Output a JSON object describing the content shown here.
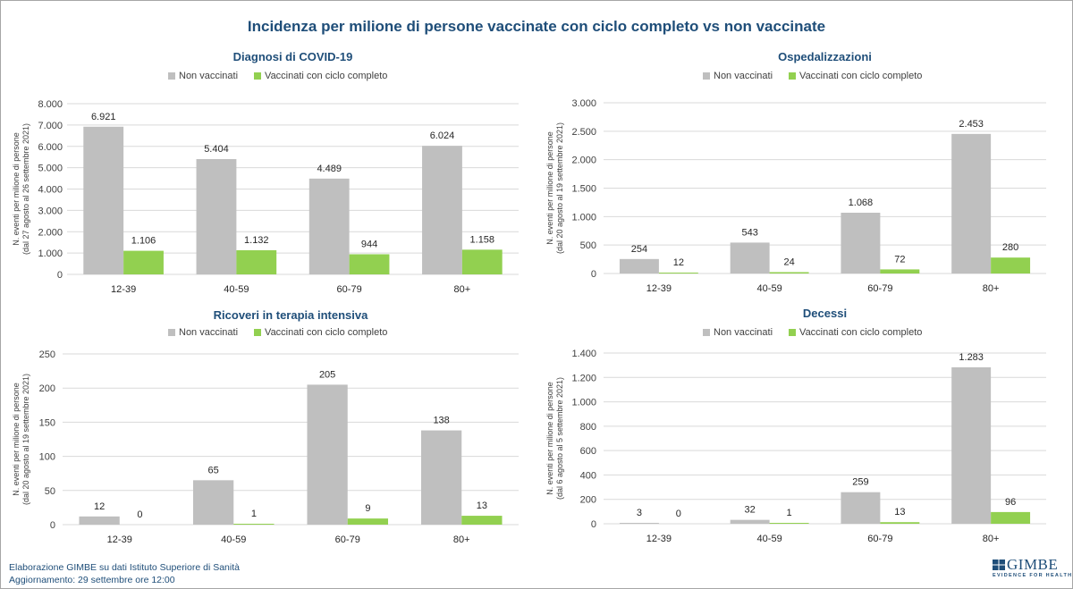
{
  "title": "Incidenza per milione di persone vaccinate con ciclo completo vs non vaccinate",
  "colors": {
    "non_vaccinati": "#bfbfbf",
    "vaccinati": "#92d050",
    "title": "#1f4e79",
    "grid": "#d9d9d9"
  },
  "legend": {
    "non_vaccinati": "Non vaccinati",
    "vaccinati": "Vaccinati con ciclo completo"
  },
  "chart_data": [
    {
      "type": "bar",
      "title": "Diagnosi di COVID-19",
      "ylabel_line1": "N. eventi per milione di persone",
      "ylabel_line2": "(dal 27  agosto al 26  settembre 2021)",
      "categories": [
        "12-39",
        "40-59",
        "60-79",
        "80+"
      ],
      "ylim": [
        0,
        8000
      ],
      "yticks": [
        0,
        1000,
        2000,
        3000,
        4000,
        5000,
        6000,
        7000,
        8000
      ],
      "ytick_labels": [
        "0",
        "1.000",
        "2.000",
        "3.000",
        "4.000",
        "5.000",
        "6.000",
        "7.000",
        "8.000"
      ],
      "series": [
        {
          "name": "Non vaccinati",
          "values": [
            6921,
            5404,
            4489,
            6024
          ],
          "labels": [
            "6.921",
            "5.404",
            "4.489",
            "6.024"
          ]
        },
        {
          "name": "Vaccinati con ciclo completo",
          "values": [
            1106,
            1132,
            944,
            1158
          ],
          "labels": [
            "1.106",
            "1.132",
            "944",
            "1.158"
          ]
        }
      ],
      "grid": true,
      "legend_position": "top"
    },
    {
      "type": "bar",
      "title": "Ospedalizzazioni",
      "ylabel_line1": "N. eventi per milione di persone",
      "ylabel_line2": "(dal 20  agosto al 19  settembre 2021)",
      "categories": [
        "12-39",
        "40-59",
        "60-79",
        "80+"
      ],
      "ylim": [
        0,
        3000
      ],
      "yticks": [
        0,
        500,
        1000,
        1500,
        2000,
        2500,
        3000
      ],
      "ytick_labels": [
        "0",
        "500",
        "1.000",
        "1.500",
        "2.000",
        "2.500",
        "3.000"
      ],
      "series": [
        {
          "name": "Non vaccinati",
          "values": [
            254,
            543,
            1068,
            2453
          ],
          "labels": [
            "254",
            "543",
            "1.068",
            "2.453"
          ]
        },
        {
          "name": "Vaccinati con ciclo completo",
          "values": [
            12,
            24,
            72,
            280
          ],
          "labels": [
            "12",
            "24",
            "72",
            "280"
          ]
        }
      ],
      "grid": true,
      "legend_position": "top"
    },
    {
      "type": "bar",
      "title": "Ricoveri in terapia intensiva",
      "ylabel_line1": "N. eventi per milione di persone",
      "ylabel_line2": "(dal 20  agosto al 19  settembre 2021)",
      "categories": [
        "12-39",
        "40-59",
        "60-79",
        "80+"
      ],
      "ylim": [
        0,
        250
      ],
      "yticks": [
        0,
        50,
        100,
        150,
        200,
        250
      ],
      "ytick_labels": [
        "0",
        "50",
        "100",
        "150",
        "200",
        "250"
      ],
      "series": [
        {
          "name": "Non vaccinati",
          "values": [
            12,
            65,
            205,
            138
          ],
          "labels": [
            "12",
            "65",
            "205",
            "138"
          ]
        },
        {
          "name": "Vaccinati con ciclo completo",
          "values": [
            0,
            1,
            9,
            13
          ],
          "labels": [
            "0",
            "1",
            "9",
            "13"
          ]
        }
      ],
      "grid": true,
      "legend_position": "top"
    },
    {
      "type": "bar",
      "title": "Decessi",
      "ylabel_line1": "N. eventi per milione di persone",
      "ylabel_line2": "(dal 6  agosto al 5  settembre 2021)",
      "categories": [
        "12-39",
        "40-59",
        "60-79",
        "80+"
      ],
      "ylim": [
        0,
        1400
      ],
      "yticks": [
        0,
        200,
        400,
        600,
        800,
        1000,
        1200,
        1400
      ],
      "ytick_labels": [
        "0",
        "200",
        "400",
        "600",
        "800",
        "1.000",
        "1.200",
        "1.400"
      ],
      "series": [
        {
          "name": "Non vaccinati",
          "values": [
            3,
            32,
            259,
            1283
          ],
          "labels": [
            "3",
            "32",
            "259",
            "1.283"
          ]
        },
        {
          "name": "Vaccinati con ciclo completo",
          "values": [
            0,
            1,
            13,
            96
          ],
          "labels": [
            "0",
            "1",
            "13",
            "96"
          ]
        }
      ],
      "grid": true,
      "legend_position": "top"
    }
  ],
  "footer": {
    "line1": "Elaborazione GIMBE su dati Istituto Superiore di Sanità",
    "line2": "Aggiornamento: 29 settembre ore 12:00"
  },
  "logo": {
    "name": "GIMBE",
    "tagline": "EVIDENCE FOR HEALTH"
  }
}
